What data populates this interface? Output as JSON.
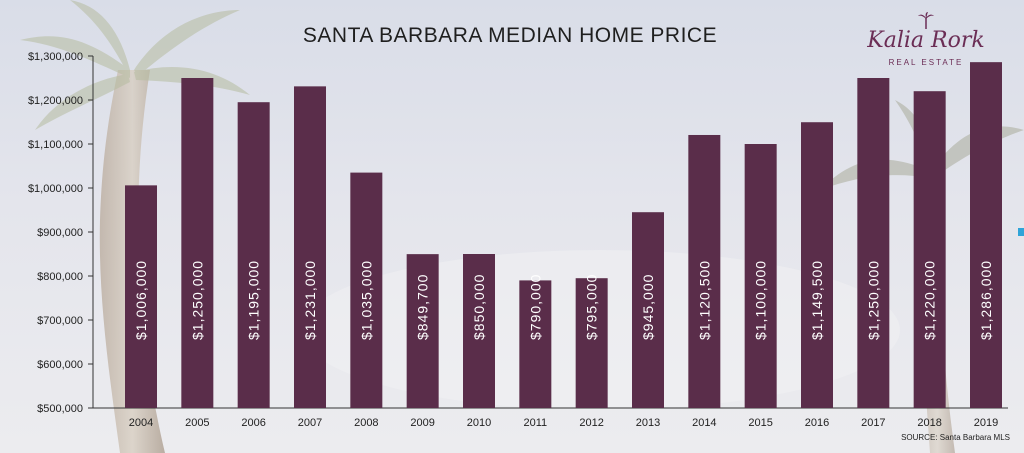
{
  "title": "SANTA BARBARA MEDIAN HOME PRICE",
  "logo": {
    "name": "Kalia Rork",
    "subtitle": "REAL ESTATE",
    "icon": "palm-tree-icon"
  },
  "source": "SOURCE: Santa Barbara MLS",
  "colors": {
    "bar": "#5a2d4a",
    "bar_text": "#ffffff",
    "axis": "#333333",
    "logo": "#6b2d55",
    "edge_marker": "#2fa4d8"
  },
  "chart_data": {
    "type": "bar",
    "title": "SANTA BARBARA MEDIAN HOME PRICE",
    "categories": [
      "2004",
      "2005",
      "2006",
      "2007",
      "2008",
      "2009",
      "2010",
      "2011",
      "2012",
      "2013",
      "2014",
      "2015",
      "2016",
      "2017",
      "2018",
      "2019"
    ],
    "values": [
      1006000,
      1250000,
      1195000,
      1231000,
      1035000,
      849700,
      850000,
      790000,
      795000,
      945000,
      1120500,
      1100000,
      1149500,
      1250000,
      1220000,
      1286000
    ],
    "data_labels": [
      "$1,006,000",
      "$1,250,000",
      "$1,195,000",
      "$1,231,000",
      "$1,035,000",
      "$849,700",
      "$850,000",
      "$790,000",
      "$795,000",
      "$945,000",
      "$1,120,500",
      "$1,100,000",
      "$1,149,500",
      "$1,250,000",
      "$1,220,000",
      "$1,286,000"
    ],
    "ylim": [
      500000,
      1300000
    ],
    "y_ticks": [
      500000,
      600000,
      700000,
      800000,
      900000,
      1000000,
      1100000,
      1200000,
      1300000
    ],
    "y_tick_labels": [
      "$500,000",
      "$600,000",
      "$700,000",
      "$800,000",
      "$900,000",
      "$1,000,000",
      "$1,100,000",
      "$1,200,000",
      "$1,300,000"
    ],
    "xlabel": "",
    "ylabel": "",
    "grid": false,
    "legend": "none"
  }
}
